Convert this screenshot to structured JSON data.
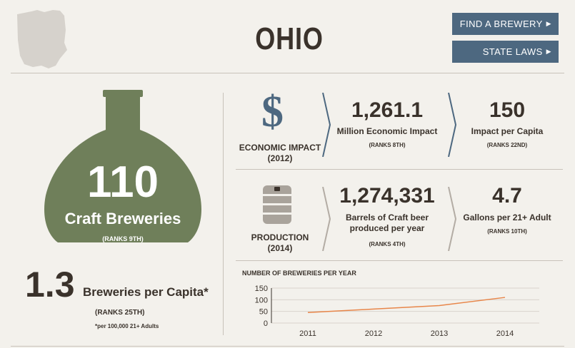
{
  "header": {
    "state": "OHIO",
    "buttons": [
      {
        "label": "FIND A BREWERY",
        "icon": "triangle-right-icon"
      },
      {
        "label": "STATE LAWS",
        "icon": "triangle-right-icon"
      }
    ]
  },
  "breweries": {
    "count": "110",
    "label": "Craft Breweries",
    "rank": "(RANKS 9TH)"
  },
  "per_capita": {
    "value": "1.3",
    "label": "Breweries per Capita*",
    "rank": "(RANKS 25TH)",
    "footnote": "*per 100,000 21+ Adults"
  },
  "economic": {
    "icon": "dollar-icon",
    "label": "ECONOMIC IMPACT",
    "year": "(2012)",
    "impact_value": "1,261.1",
    "impact_label": "Million Economic Impact",
    "impact_rank": "(RANKS 8TH)",
    "capita_value": "150",
    "capita_label": "Impact per Capita",
    "capita_rank": "(RANKS 22ND)"
  },
  "production": {
    "icon": "barrel-icon",
    "label": "PRODUCTION",
    "year": "(2014)",
    "barrels_value": "1,274,331",
    "barrels_label_1": "Barrels of Craft beer",
    "barrels_label_2": "produced per year",
    "barrels_rank": "(RANKS 4TH)",
    "gallons_value": "4.7",
    "gallons_label": "Gallons per 21+ Adult",
    "gallons_rank": "(RANKS 10TH)"
  },
  "colors": {
    "accent": "#4d6880",
    "beaker": "#6f7f5a",
    "line": "#e8864a",
    "background": "#f3f1ec"
  },
  "chart_data": {
    "type": "line",
    "title": "NUMBER OF BREWERIES PER YEAR",
    "categories": [
      "2011",
      "2012",
      "2013",
      "2014"
    ],
    "series": [
      {
        "values": [
          45,
          60,
          75,
          110
        ]
      }
    ],
    "ylim": [
      0,
      150
    ],
    "yticks": [
      "150",
      "100",
      "50",
      "0"
    ],
    "grid": true
  }
}
